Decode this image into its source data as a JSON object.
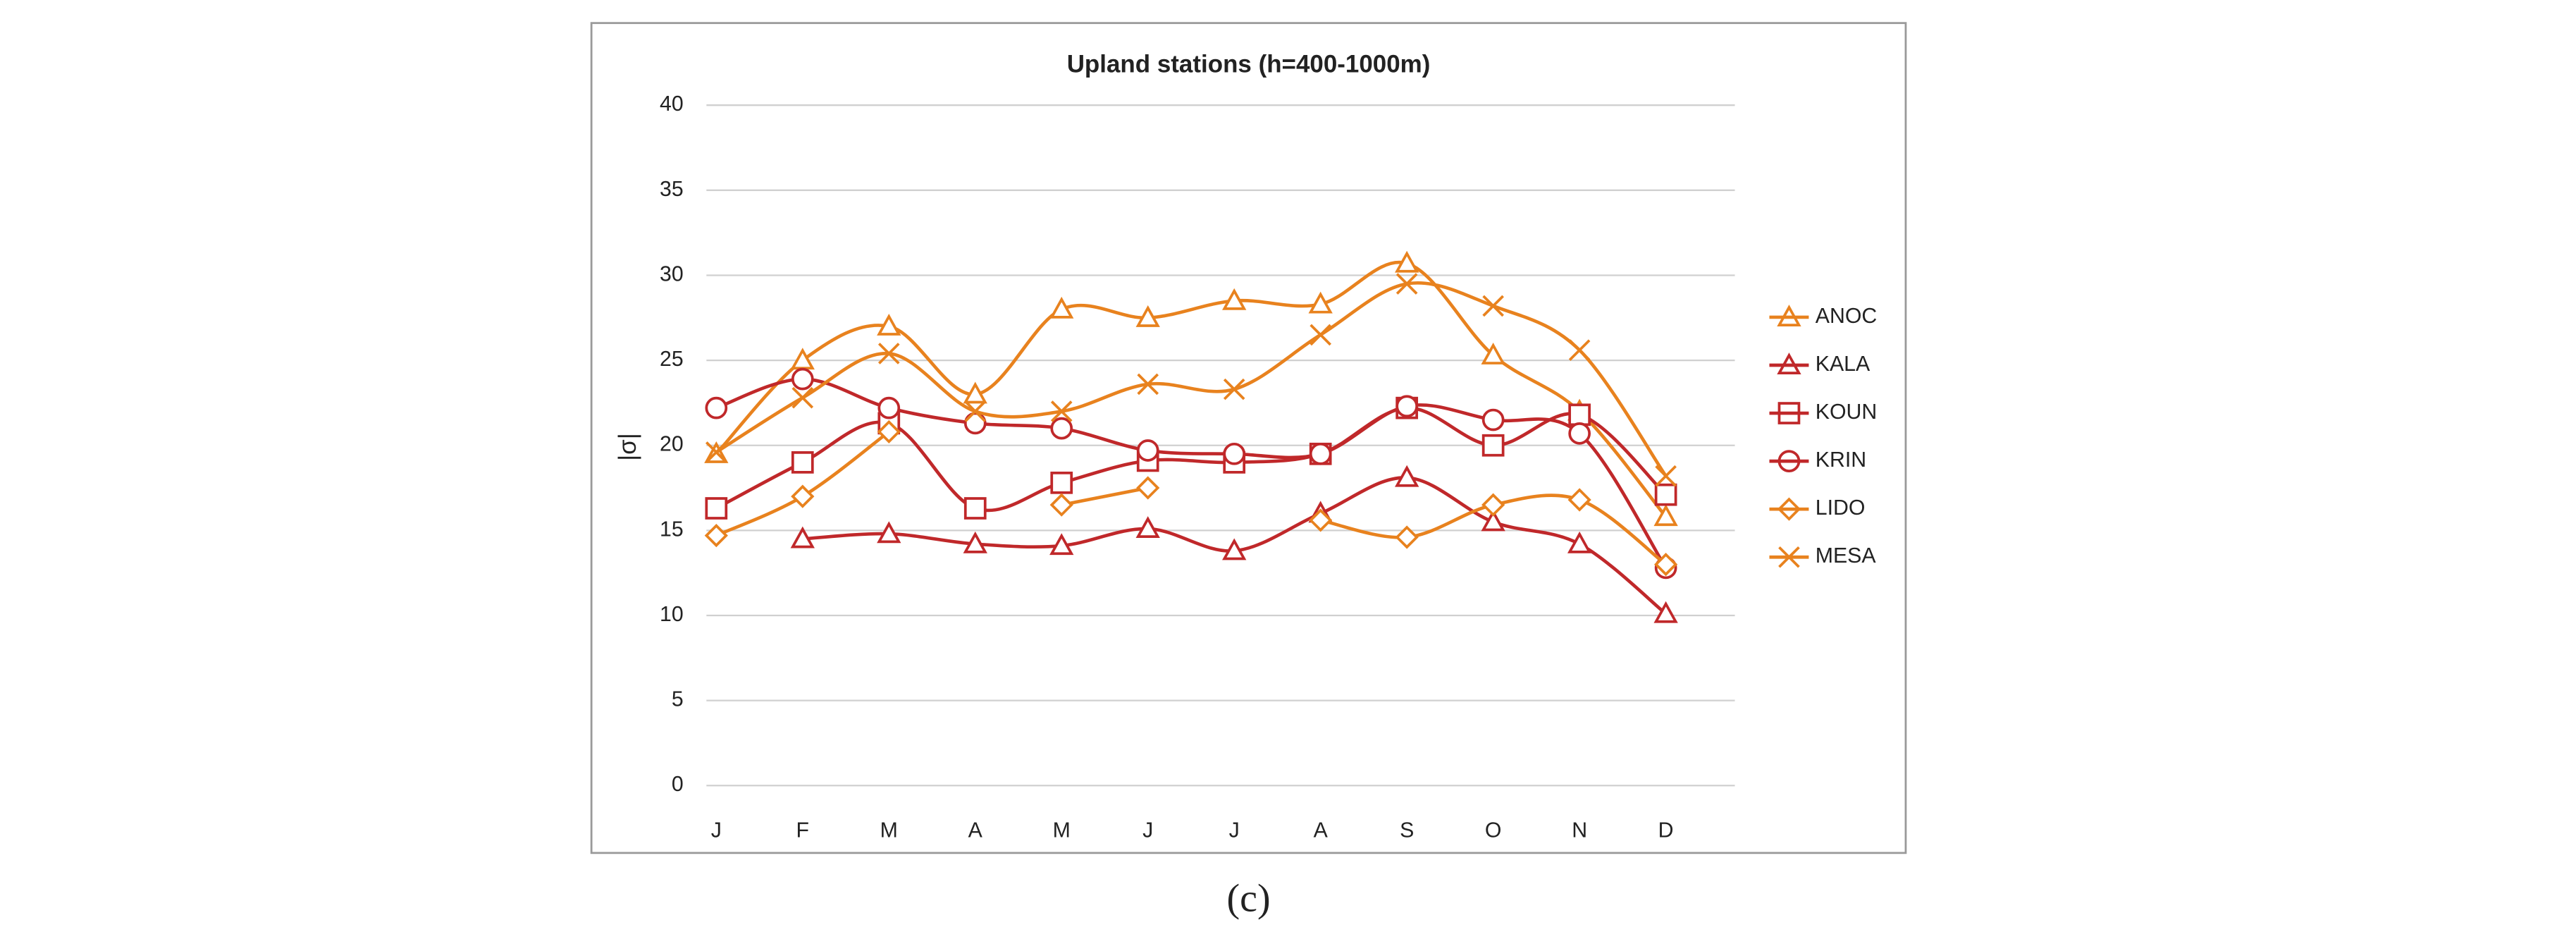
{
  "chart_data": {
    "type": "line",
    "title": "Upland stations (h=400-1000m)",
    "y_label": "|σ|",
    "caption": "(c)",
    "categories": [
      "J",
      "F",
      "M",
      "A",
      "M",
      "J",
      "J",
      "A",
      "S",
      "O",
      "N",
      "D"
    ],
    "ylim": [
      0,
      40
    ],
    "yticks": [
      0,
      5,
      10,
      15,
      20,
      25,
      30,
      35,
      40
    ],
    "grid": true,
    "smooth": true,
    "legend": "right",
    "series": [
      {
        "name": "ANOC",
        "color": "#e8821e",
        "marker": "triangle",
        "values": [
          19.5,
          25,
          27,
          23,
          28,
          27.5,
          28.5,
          28.3,
          30.7,
          25.3,
          22,
          15.8
        ]
      },
      {
        "name": "KALA",
        "color": "#c0282a",
        "marker": "triangle",
        "values": [
          null,
          14.5,
          14.8,
          14.2,
          14.1,
          15.1,
          13.8,
          16,
          18.1,
          15.5,
          14.2,
          10.1
        ]
      },
      {
        "name": "KOUN",
        "color": "#c0282a",
        "marker": "square",
        "values": [
          16.3,
          19,
          21.3,
          16.3,
          17.8,
          19.1,
          19,
          19.5,
          22.2,
          20,
          21.8,
          17.1
        ]
      },
      {
        "name": "KRIN",
        "color": "#c0282a",
        "marker": "circle",
        "values": [
          22.2,
          23.9,
          22.2,
          21.3,
          21,
          19.7,
          19.5,
          19.5,
          22.3,
          21.5,
          20.7,
          12.8
        ]
      },
      {
        "name": "LIDO",
        "color": "#e8821e",
        "marker": "diamond",
        "values": [
          14.7,
          17,
          20.8,
          null,
          16.5,
          17.5,
          null,
          15.6,
          14.6,
          16.5,
          16.8,
          13
        ]
      },
      {
        "name": "MESA",
        "color": "#e8821e",
        "marker": "x",
        "values": [
          19.6,
          22.8,
          25.4,
          22,
          22,
          23.6,
          23.3,
          26.5,
          29.5,
          28.2,
          25.6,
          18.2
        ]
      }
    ]
  }
}
